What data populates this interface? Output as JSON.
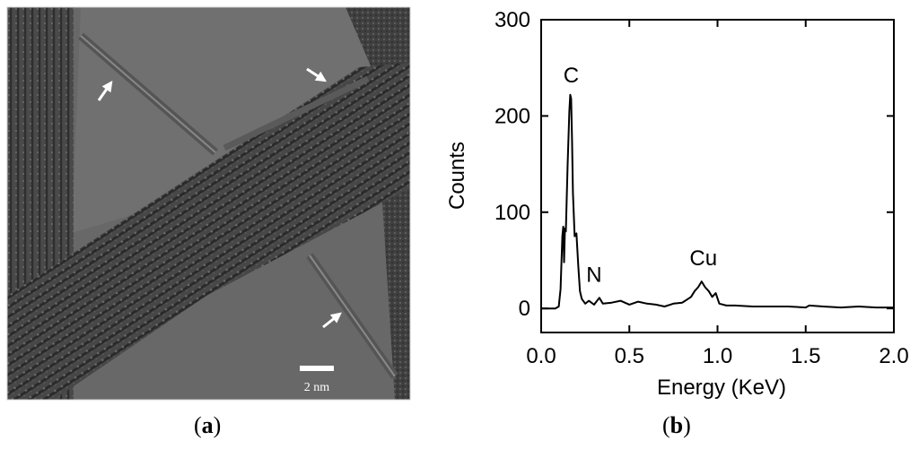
{
  "panel_a": {
    "label_open": "(",
    "label_letter": "a",
    "label_close": ")",
    "scale_bar_text": "2 nm"
  },
  "panel_b": {
    "label_open": "(",
    "label_letter": "b",
    "label_close": ")"
  },
  "chart_data": {
    "type": "line",
    "title": "",
    "xlabel": "Energy (KeV)",
    "ylabel": "Counts",
    "xlim": [
      0.0,
      2.0
    ],
    "ylim": [
      -25,
      300
    ],
    "xticks": [
      "0.0",
      "0.5",
      "1.0",
      "1.5",
      "2.0"
    ],
    "xtick_values": [
      0.0,
      0.5,
      1.0,
      1.5,
      2.0
    ],
    "yticks": [
      "0",
      "100",
      "200",
      "300"
    ],
    "ytick_values": [
      0,
      100,
      200,
      300
    ],
    "grid": false,
    "annotations": [
      {
        "text": "C",
        "x": 0.17,
        "y": 222
      },
      {
        "text": "N",
        "x": 0.3,
        "y": 20
      },
      {
        "text": "Cu",
        "x": 0.92,
        "y": 32
      }
    ],
    "series": [
      {
        "x": [
          0.0,
          0.08,
          0.1,
          0.11,
          0.12,
          0.125,
          0.13,
          0.135,
          0.14,
          0.15,
          0.16,
          0.165,
          0.17,
          0.175,
          0.18,
          0.19,
          0.2,
          0.21,
          0.22,
          0.23,
          0.25,
          0.27,
          0.3,
          0.33,
          0.35,
          0.4,
          0.45,
          0.5,
          0.55,
          0.6,
          0.65,
          0.7,
          0.75,
          0.8,
          0.85,
          0.87,
          0.89,
          0.91,
          0.93,
          0.95,
          0.97,
          0.99,
          1.01,
          1.05,
          1.1,
          1.2,
          1.3,
          1.4,
          1.5,
          1.52,
          1.6,
          1.7,
          1.8,
          1.9,
          2.0
        ],
        "y": [
          0,
          0,
          2,
          20,
          75,
          85,
          48,
          83,
          80,
          150,
          205,
          222,
          218,
          175,
          120,
          75,
          78,
          45,
          18,
          10,
          5,
          8,
          4,
          11,
          5,
          6,
          8,
          4,
          7,
          5,
          4,
          2,
          5,
          6,
          12,
          18,
          22,
          28,
          22,
          18,
          12,
          16,
          5,
          3,
          3,
          2,
          2,
          2,
          1,
          3,
          2,
          1,
          2,
          1,
          1
        ]
      }
    ]
  }
}
